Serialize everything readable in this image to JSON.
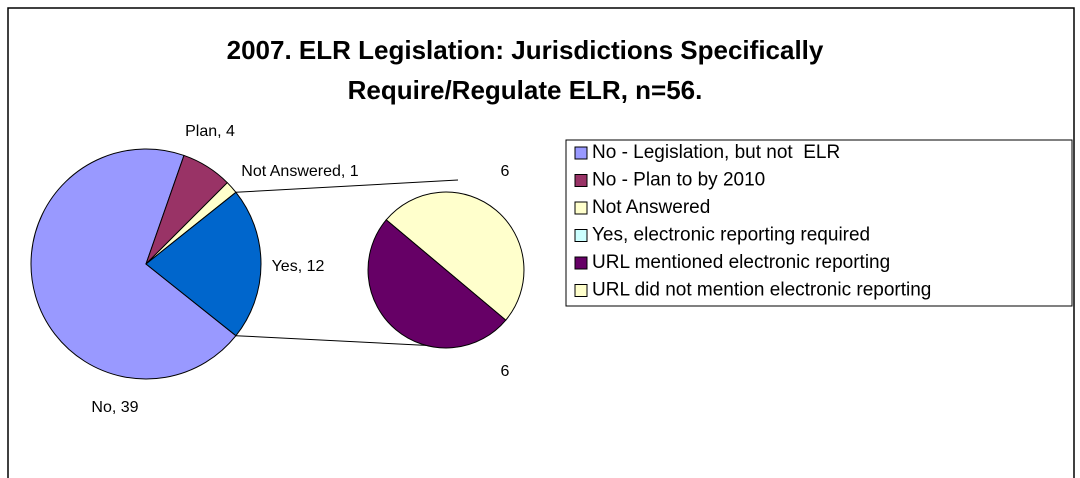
{
  "chart_data": {
    "type": "pie-of-pie",
    "title": [
      "2007. ELR Legislation: Jurisdictions Specifically",
      "Require/Regulate ELR, n=56."
    ],
    "pie": {
      "values": [
        39,
        4,
        1,
        12
      ],
      "value_labels": [
        "No, 39",
        "Plan, 4",
        "Not Answered, 1",
        "Yes, 12"
      ],
      "colors": [
        "#9999ff",
        "#993366",
        "#ffffcc",
        "#0066cc"
      ]
    },
    "secondary": {
      "values": [
        6,
        6
      ],
      "colors": [
        "#ffffcc",
        "#660066"
      ]
    },
    "legend": [
      {
        "name": "No - Legislation, but not  ELR",
        "color": "#9999ff"
      },
      {
        "name": "No - Plan to by 2010",
        "color": "#993366"
      },
      {
        "name": "Not Answered",
        "color": "#ffffcc"
      },
      {
        "name": "Yes, electronic reporting required",
        "color": "#ccffff"
      },
      {
        "name": "URL mentioned electronic reporting",
        "color": "#660066"
      },
      {
        "name": "URL did not mention electronic reporting",
        "color": "#ffffcc"
      }
    ]
  }
}
